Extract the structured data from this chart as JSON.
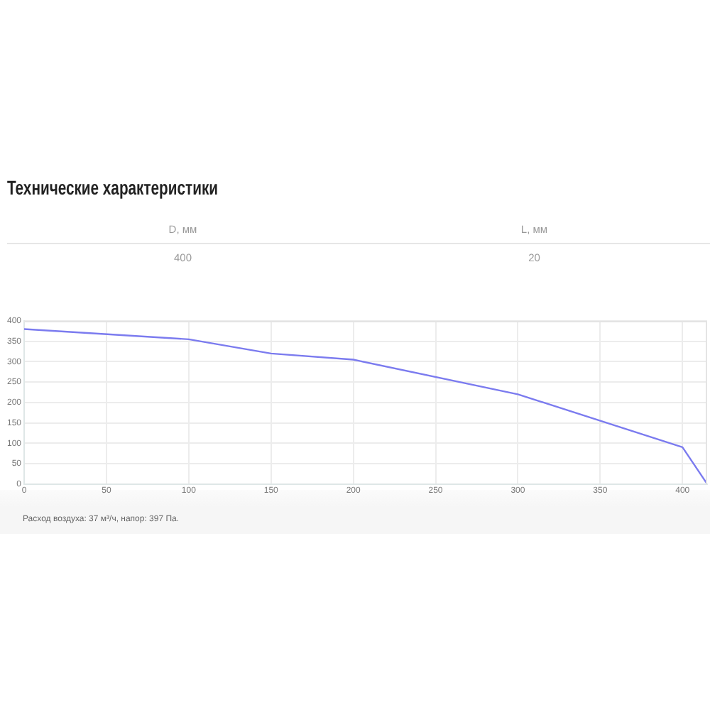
{
  "chart_data": [
    {
      "type": "other",
      "title": "Технические характеристики",
      "categories": [
        "D, мм",
        "L, мм"
      ],
      "values": [
        400,
        20
      ],
      "data_labels": true
    },
    {
      "type": "line",
      "x": [
        0,
        100,
        150,
        200,
        300,
        400,
        415
      ],
      "values": [
        380,
        355,
        320,
        305,
        220,
        90,
        0
      ],
      "color": "#7b7bef",
      "xlim": [
        0,
        415
      ],
      "xticks": [
        0,
        50,
        100,
        150,
        200,
        250,
        300,
        350,
        400
      ],
      "ylim": [
        0,
        400
      ],
      "yticks": [
        0,
        50,
        100,
        150,
        200,
        250,
        300,
        350,
        400
      ],
      "grid": true,
      "marker": "none",
      "line_style": "solid",
      "annotations": [
        "Расход воздуха: 37 м³/ч, напор: 397 Па."
      ]
    }
  ]
}
